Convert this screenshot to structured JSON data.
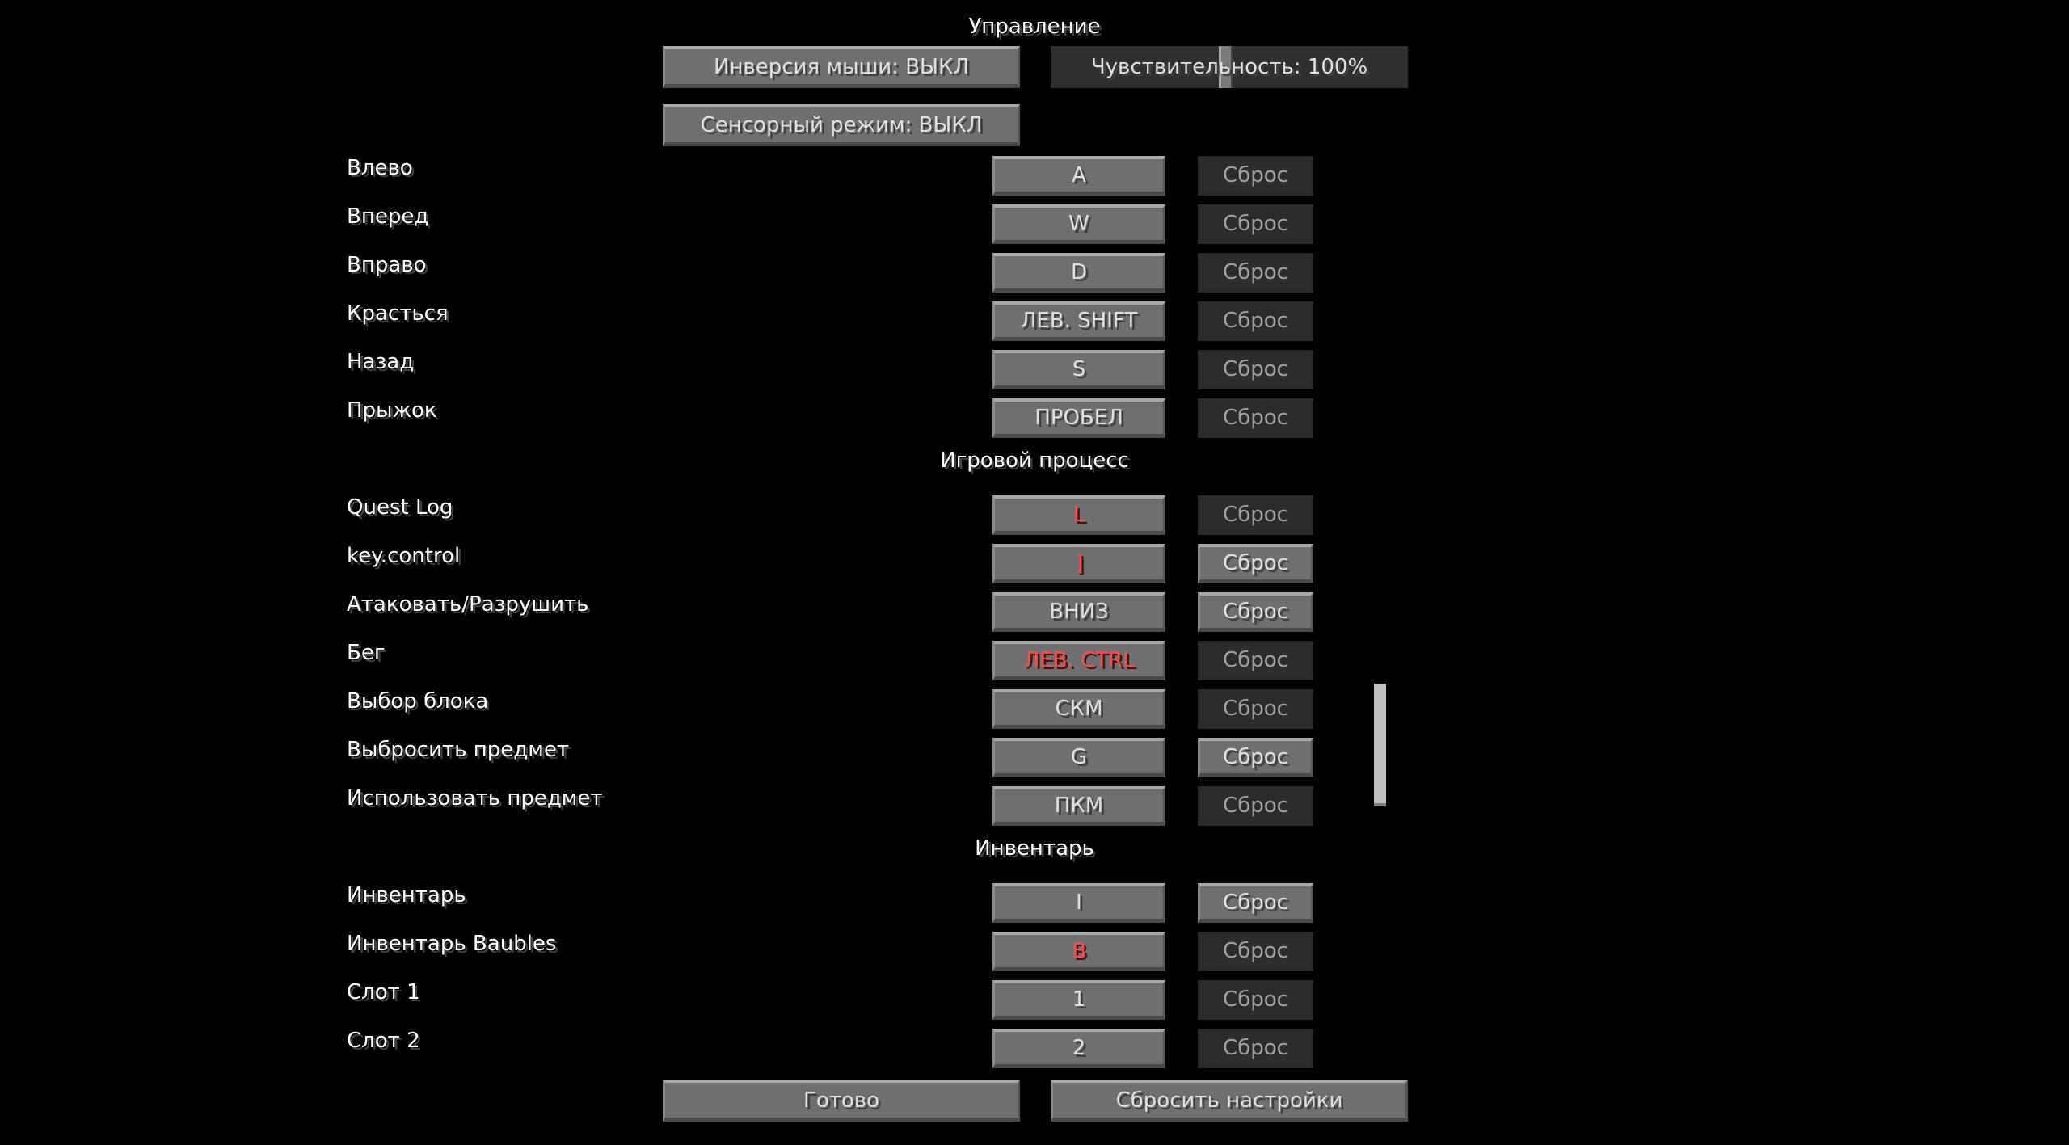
{
  "header": {
    "title": "Управление"
  },
  "options": {
    "invert_mouse": "Инверсия мыши: ВЫКЛ",
    "sensitivity": "Чувствительность: 100%",
    "sensitivity_percent": 100,
    "touchscreen": "Сенсорный режим: ВЫКЛ"
  },
  "reset_label": "Сброс",
  "key_conflict_color": "#ff4a4a",
  "sections": [
    {
      "title": "",
      "rows": [
        {
          "name": "Влево",
          "key": "A",
          "conflict": false,
          "reset_enabled": false
        },
        {
          "name": "Вперед",
          "key": "W",
          "conflict": false,
          "reset_enabled": false
        },
        {
          "name": "Вправо",
          "key": "D",
          "conflict": false,
          "reset_enabled": false
        },
        {
          "name": "Красться",
          "key": "ЛЕВ. SHIFT",
          "conflict": false,
          "reset_enabled": false
        },
        {
          "name": "Назад",
          "key": "S",
          "conflict": false,
          "reset_enabled": false
        },
        {
          "name": "Прыжок",
          "key": "ПРОБЕЛ",
          "conflict": false,
          "reset_enabled": false
        }
      ]
    },
    {
      "title": "Игровой процесс",
      "rows": [
        {
          "name": "Quest Log",
          "key": "L",
          "conflict": true,
          "reset_enabled": false
        },
        {
          "name": "key.control",
          "key": "]",
          "conflict": true,
          "reset_enabled": true
        },
        {
          "name": "Атаковать/Разрушить",
          "key": "ВНИЗ",
          "conflict": false,
          "reset_enabled": true
        },
        {
          "name": "Бег",
          "key": "ЛЕВ. CTRL",
          "conflict": true,
          "reset_enabled": false
        },
        {
          "name": "Выбор блока",
          "key": "СКМ",
          "conflict": false,
          "reset_enabled": false
        },
        {
          "name": "Выбросить предмет",
          "key": "G",
          "conflict": false,
          "reset_enabled": true
        },
        {
          "name": "Использовать предмет",
          "key": "ПКМ",
          "conflict": false,
          "reset_enabled": false
        }
      ]
    },
    {
      "title": "Инвентарь",
      "rows": [
        {
          "name": "Инвентарь",
          "key": "I",
          "conflict": false,
          "reset_enabled": true
        },
        {
          "name": "Инвентарь Baubles",
          "key": "B",
          "conflict": true,
          "reset_enabled": false
        },
        {
          "name": "Слот 1",
          "key": "1",
          "conflict": false,
          "reset_enabled": false
        },
        {
          "name": "Слот 2",
          "key": "2",
          "conflict": false,
          "reset_enabled": false
        }
      ]
    }
  ],
  "footer": {
    "done": "Готово",
    "reset_all": "Сбросить настройки"
  }
}
